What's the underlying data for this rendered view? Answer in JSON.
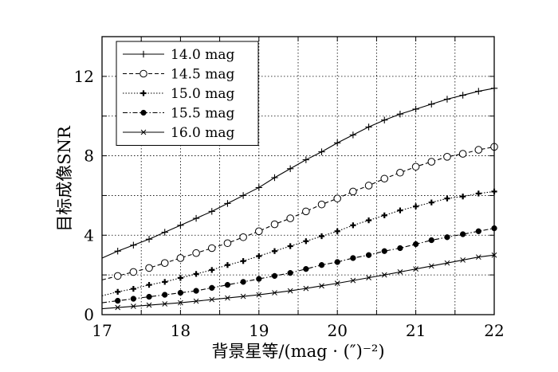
{
  "chart_data": {
    "type": "line",
    "xlabel": "背景星等/(mag · (″)⁻²)",
    "ylabel": "目标成像SNR",
    "xlim": [
      17,
      22
    ],
    "ylim": [
      0,
      14
    ],
    "xticks": [
      17,
      18,
      19,
      20,
      21,
      22
    ],
    "yticks": [
      0,
      4,
      8,
      12
    ],
    "grid": true,
    "legend_position": "top-left",
    "series": [
      {
        "name": "14.0 mag",
        "marker": "plus",
        "dash": "solid",
        "x": [
          17.0,
          17.2,
          17.4,
          17.6,
          17.8,
          18.0,
          18.2,
          18.4,
          18.6,
          18.8,
          19.0,
          19.2,
          19.4,
          19.6,
          19.8,
          20.0,
          20.2,
          20.4,
          20.6,
          20.8,
          21.0,
          21.2,
          21.4,
          21.6,
          21.8,
          22.0
        ],
        "y": [
          2.85,
          3.2,
          3.5,
          3.8,
          4.15,
          4.5,
          4.85,
          5.2,
          5.6,
          6.0,
          6.4,
          6.9,
          7.35,
          7.8,
          8.2,
          8.65,
          9.05,
          9.45,
          9.8,
          10.1,
          10.35,
          10.6,
          10.85,
          11.05,
          11.25,
          11.4
        ]
      },
      {
        "name": "14.5 mag",
        "marker": "circle-open",
        "dash": "dashed",
        "x": [
          17.0,
          17.2,
          17.4,
          17.6,
          17.8,
          18.0,
          18.2,
          18.4,
          18.6,
          18.8,
          19.0,
          19.2,
          19.4,
          19.6,
          19.8,
          20.0,
          20.2,
          20.4,
          20.6,
          20.8,
          21.0,
          21.2,
          21.4,
          21.6,
          21.8,
          22.0
        ],
        "y": [
          1.75,
          1.95,
          2.15,
          2.35,
          2.6,
          2.85,
          3.1,
          3.35,
          3.6,
          3.9,
          4.2,
          4.55,
          4.85,
          5.2,
          5.55,
          5.85,
          6.2,
          6.5,
          6.85,
          7.15,
          7.45,
          7.7,
          7.95,
          8.1,
          8.3,
          8.45
        ]
      },
      {
        "name": "15.0 mag",
        "marker": "plus-bold",
        "dash": "dotted",
        "x": [
          17.0,
          17.2,
          17.4,
          17.6,
          17.8,
          18.0,
          18.2,
          18.4,
          18.6,
          18.8,
          19.0,
          19.2,
          19.4,
          19.6,
          19.8,
          20.0,
          20.2,
          20.4,
          20.6,
          20.8,
          21.0,
          21.2,
          21.4,
          21.6,
          21.8,
          22.0
        ],
        "y": [
          0.95,
          1.15,
          1.3,
          1.5,
          1.65,
          1.85,
          2.05,
          2.25,
          2.5,
          2.7,
          2.95,
          3.2,
          3.45,
          3.7,
          3.95,
          4.2,
          4.5,
          4.75,
          5.0,
          5.25,
          5.45,
          5.65,
          5.85,
          5.95,
          6.1,
          6.2
        ]
      },
      {
        "name": "15.5 mag",
        "marker": "circle-filled",
        "dash": "dashdot",
        "x": [
          17.0,
          17.2,
          17.4,
          17.6,
          17.8,
          18.0,
          18.2,
          18.4,
          18.6,
          18.8,
          19.0,
          19.2,
          19.4,
          19.6,
          19.8,
          20.0,
          20.2,
          20.4,
          20.6,
          20.8,
          21.0,
          21.2,
          21.4,
          21.6,
          21.8,
          22.0
        ],
        "y": [
          0.6,
          0.7,
          0.8,
          0.9,
          1.0,
          1.1,
          1.2,
          1.35,
          1.5,
          1.65,
          1.8,
          1.95,
          2.1,
          2.3,
          2.5,
          2.65,
          2.85,
          3.0,
          3.2,
          3.35,
          3.55,
          3.75,
          3.9,
          4.05,
          4.2,
          4.35
        ]
      },
      {
        "name": "16.0 mag",
        "marker": "x",
        "dash": "solid",
        "x": [
          17.0,
          17.2,
          17.4,
          17.6,
          17.8,
          18.0,
          18.2,
          18.4,
          18.6,
          18.8,
          19.0,
          19.2,
          19.4,
          19.6,
          19.8,
          20.0,
          20.2,
          20.4,
          20.6,
          20.8,
          21.0,
          21.2,
          21.4,
          21.6,
          21.8,
          22.0
        ],
        "y": [
          0.3,
          0.36,
          0.42,
          0.48,
          0.54,
          0.6,
          0.68,
          0.76,
          0.84,
          0.92,
          1.0,
          1.1,
          1.2,
          1.32,
          1.45,
          1.58,
          1.72,
          1.86,
          2.0,
          2.15,
          2.3,
          2.45,
          2.6,
          2.75,
          2.9,
          3.0
        ]
      }
    ]
  }
}
